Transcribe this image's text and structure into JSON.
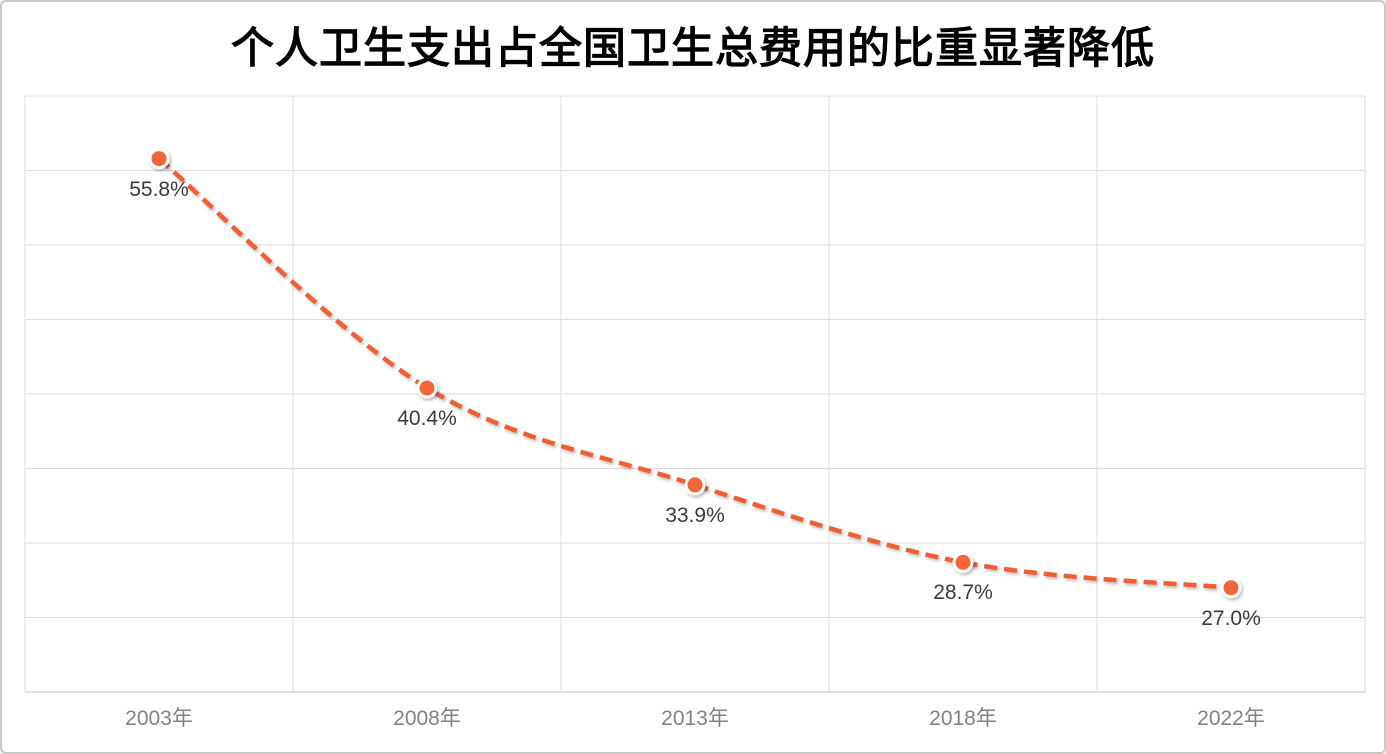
{
  "chart_data": {
    "type": "line",
    "title": "个人卫生支出占全国卫生总费用的比重显著降低",
    "categories": [
      "2003年",
      "2008年",
      "2013年",
      "2018年",
      "2022年"
    ],
    "series": [
      {
        "values": [
          55.8,
          40.4,
          33.9,
          28.7,
          27.0
        ]
      }
    ],
    "data_labels": [
      "55.8%",
      "40.4%",
      "33.9%",
      "28.7%",
      "27.0%"
    ],
    "xlabel": "",
    "ylabel": "",
    "ylim": [
      20,
      60
    ],
    "y_gridline_step": 5,
    "grid": true,
    "legend": "none",
    "line_style": "dashed",
    "line_smoothed": true,
    "colors": {
      "line": "#ef5e30",
      "marker_fill": "#f3663a",
      "marker_ring": "#ffffff",
      "gridline": "#dcdcdc",
      "axis_line": "#c3c3c3",
      "title_text": "#000000",
      "data_label_text": "#3a3a3e",
      "axis_label_text": "#828282",
      "background": "#ffffff",
      "frame_border": "#cacaca"
    }
  }
}
